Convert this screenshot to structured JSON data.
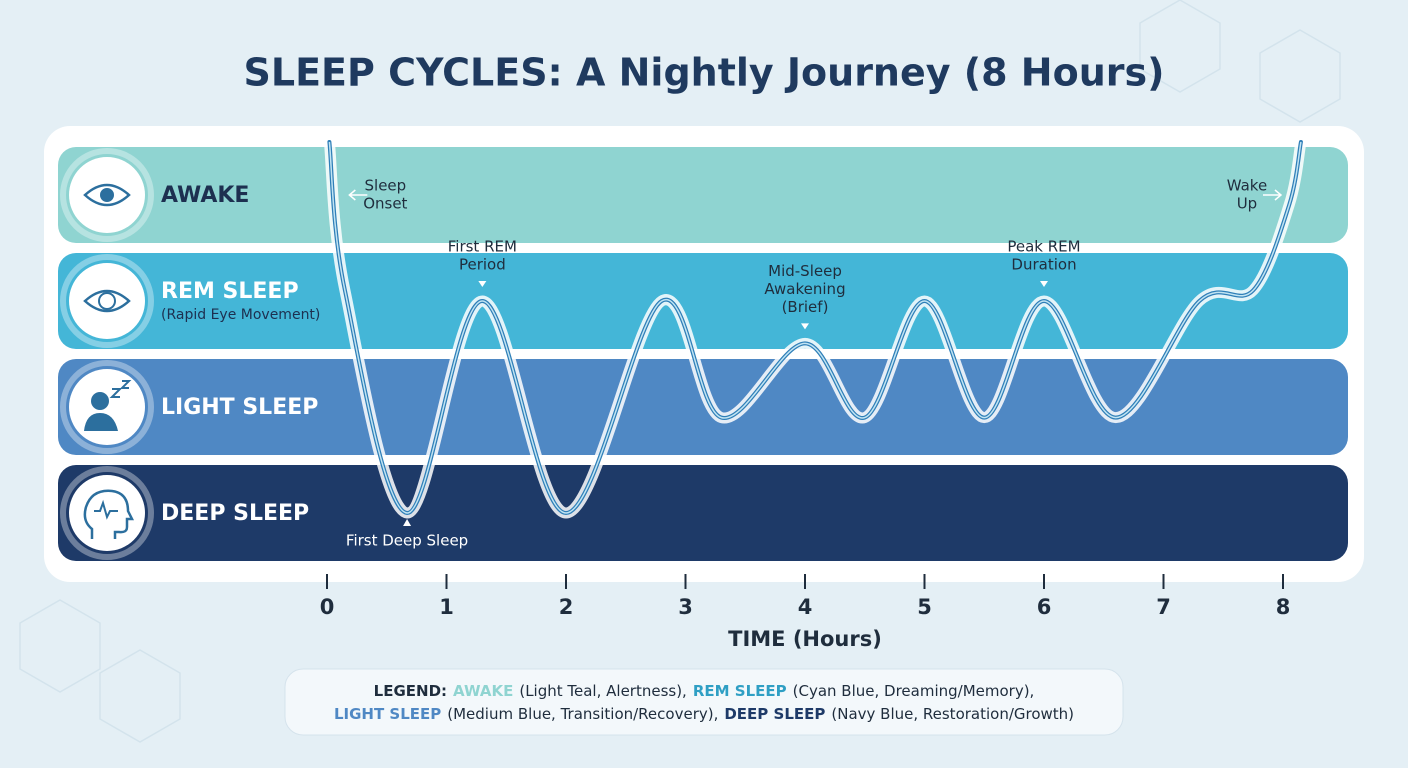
{
  "chart_data": {
    "type": "hypnogram",
    "title": "SLEEP CYCLES: A Nightly Journey (8 Hours)",
    "x_label": "TIME (Hours)",
    "xlim": [
      0,
      8
    ],
    "xticks": [
      0,
      1,
      2,
      3,
      4,
      5,
      6,
      7,
      8
    ],
    "ylim": [
      -0.5,
      3.5
    ],
    "stages": [
      {
        "name": "AWAKE",
        "color": "#8fd4d1"
      },
      {
        "name": "REM SLEEP",
        "note": "(Rapid Eye Movement)",
        "color": "#44b6d7"
      },
      {
        "name": "LIGHT SLEEP",
        "color": "#4f88c4"
      },
      {
        "name": "DEEP SLEEP",
        "color": "#1e3a68"
      }
    ],
    "series": [
      {
        "color": "#2f7fb8",
        "x": [
          0.02,
          0.15,
          0.67,
          1.3,
          2.0,
          2.8,
          3.3,
          4.0,
          4.5,
          5.0,
          5.5,
          6.0,
          6.6,
          7.3,
          7.75,
          8.05,
          8.15
        ],
        "values": [
          3.5,
          2.1,
          0,
          2,
          0,
          2,
          0.9,
          1.6,
          0.9,
          2,
          0.9,
          2,
          0.9,
          2,
          2.1,
          2.9,
          3.5
        ]
      }
    ],
    "annotations": [
      {
        "lines": [
          "Sleep",
          "Onset"
        ],
        "x": 0.12,
        "level": 3,
        "side": "right"
      },
      {
        "lines": [
          "First REM",
          "Period"
        ],
        "x": 1.3,
        "level": 2,
        "side": "above"
      },
      {
        "lines": [
          "Mid-Sleep",
          "Awakening",
          "(Brief)"
        ],
        "x": 4.0,
        "level": 1.6,
        "side": "above"
      },
      {
        "lines": [
          "Peak REM",
          "Duration"
        ],
        "x": 6.0,
        "level": 2,
        "side": "above"
      },
      {
        "lines": [
          "Wake",
          "Up"
        ],
        "x": 8.05,
        "level": 3,
        "side": "left"
      },
      {
        "lines": [
          "First Deep Sleep"
        ],
        "x": 0.67,
        "level": 0,
        "side": "below"
      }
    ],
    "legend": {
      "label": "LEGEND:",
      "items": [
        {
          "name": "AWAKE",
          "text": "(Light Teal, Alertness),",
          "color": "#8fd4d1"
        },
        {
          "name": "REM SLEEP",
          "text": "(Cyan Blue, Dreaming/Memory),",
          "color": "#2f9fc4"
        },
        {
          "name": "LIGHT SLEEP",
          "text": "(Medium Blue, Transition/Recovery),",
          "color": "#4f88c4"
        },
        {
          "name": "DEEP SLEEP",
          "text": "(Navy Blue, Restoration/Growth)",
          "color": "#1e3a68"
        }
      ]
    }
  }
}
